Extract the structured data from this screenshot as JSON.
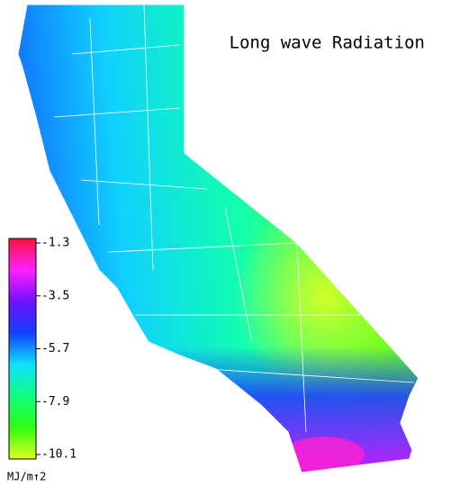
{
  "title": "Long wave Radiation",
  "colorbar": {
    "ticks": [
      -1.3,
      -3.5,
      -5.7,
      -7.9,
      -10.1
    ],
    "colors": [
      "#ff1040",
      "#ff20ff",
      "#7010ff",
      "#1040ff",
      "#10e0ff",
      "#10ff80",
      "#30ff10",
      "#e0ff20"
    ],
    "unit": "MJ/m↑2"
  }
}
